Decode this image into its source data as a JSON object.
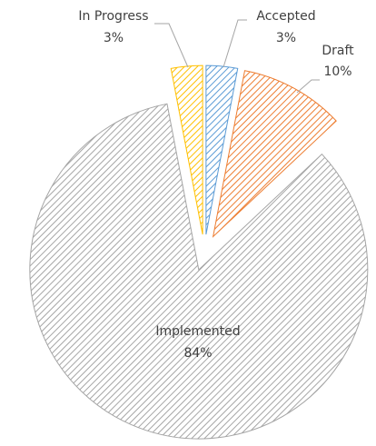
{
  "chart_data": {
    "type": "pie",
    "categories": [
      "Accepted",
      "Draft",
      "Implemented",
      "In Progress"
    ],
    "values": [
      3,
      10,
      84,
      3
    ],
    "value_labels": [
      "3%",
      "10%",
      "84%",
      "3%"
    ],
    "colors": [
      "#5b9bd5",
      "#ed7d31",
      "#a5a5a5",
      "#ffc000"
    ]
  }
}
